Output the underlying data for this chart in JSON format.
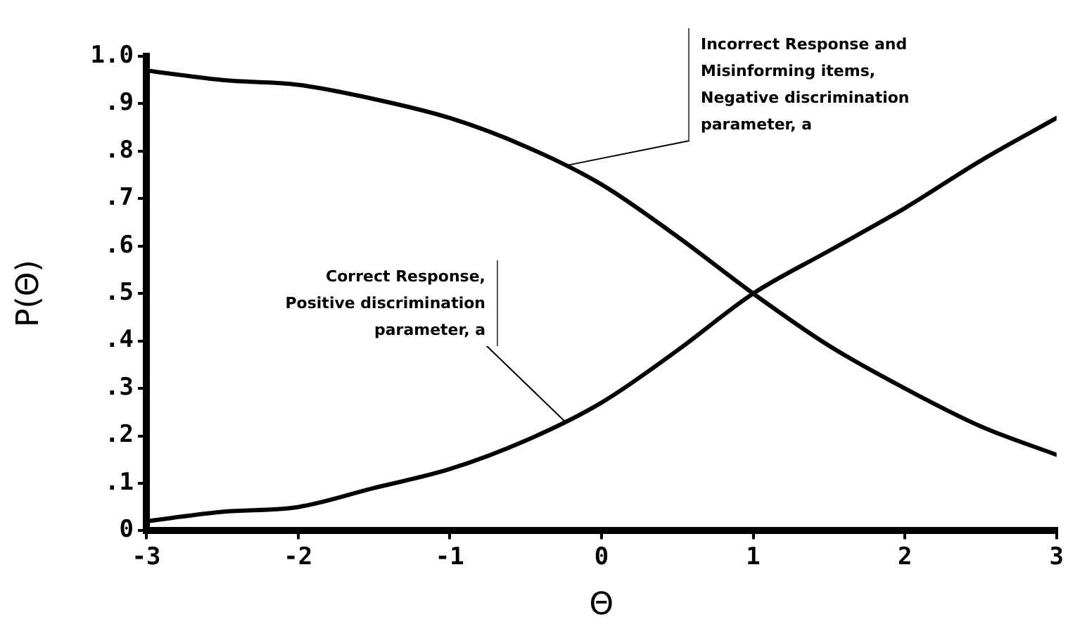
{
  "chart_data": {
    "type": "line",
    "xlabel": "Θ",
    "ylabel": "P(Θ)",
    "x": [
      -3,
      -2.5,
      -2,
      -1.5,
      -1,
      -0.5,
      0,
      0.5,
      1,
      1.5,
      2,
      2.5,
      3
    ],
    "series": [
      {
        "color": "#000000",
        "values": [
          0.97,
          0.95,
          0.94,
          0.91,
          0.87,
          0.81,
          0.73,
          0.62,
          0.5,
          0.39,
          0.3,
          0.22,
          0.16
        ]
      },
      {
        "color": "#000000",
        "values": [
          0.02,
          0.04,
          0.05,
          0.09,
          0.13,
          0.19,
          0.27,
          0.38,
          0.5,
          0.59,
          0.68,
          0.78,
          0.87
        ]
      }
    ],
    "xlim": [
      -3,
      3
    ],
    "xticks": [
      -3,
      -2,
      -1,
      0,
      1,
      2,
      3
    ],
    "ylim": [
      0,
      1
    ],
    "yticks": [
      0,
      {
        "value": 0.1,
        "label": ".1"
      },
      {
        "value": 0.2,
        "label": ".2"
      },
      {
        "value": 0.3,
        "label": ".3"
      },
      {
        "value": 0.4,
        "label": ".4"
      },
      {
        "value": 0.5,
        "label": ".5"
      },
      {
        "value": 0.6,
        "label": ".6"
      },
      {
        "value": 0.7,
        "label": ".7"
      },
      {
        "value": 0.8,
        "label": ".8"
      },
      {
        "value": 0.9,
        "label": ".9"
      },
      {
        "value": 1,
        "label": "1.0"
      }
    ],
    "annotations": [
      {
        "text": "Incorrect Response and Misinforming items, Negative discrimination parameter, a",
        "x": -0.23,
        "y": 0.77
      },
      {
        "text": "Correct Response, Positive discrimination parameter, a",
        "x": -0.24,
        "y": 0.23
      }
    ],
    "grid": false,
    "legend": false,
    "marker": "none",
    "line_style": "solid"
  }
}
